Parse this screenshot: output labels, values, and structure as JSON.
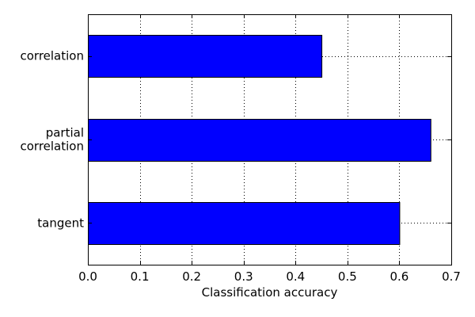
{
  "chart_data": {
    "type": "bar",
    "orientation": "horizontal",
    "categories": [
      "correlation",
      "partial correlation",
      "tangent"
    ],
    "category_lines": [
      [
        "correlation"
      ],
      [
        "partial",
        "correlation"
      ],
      [
        "tangent"
      ]
    ],
    "values": [
      0.45,
      0.66,
      0.6
    ],
    "xlabel": "Classification accuracy",
    "ylabel": "",
    "title": "",
    "xlim": [
      0.0,
      0.7
    ],
    "xticks": [
      "0.0",
      "0.1",
      "0.2",
      "0.3",
      "0.4",
      "0.5",
      "0.6",
      "0.7"
    ],
    "grid": true,
    "bar_color": "#0000ff",
    "edge_color": "#000000"
  }
}
